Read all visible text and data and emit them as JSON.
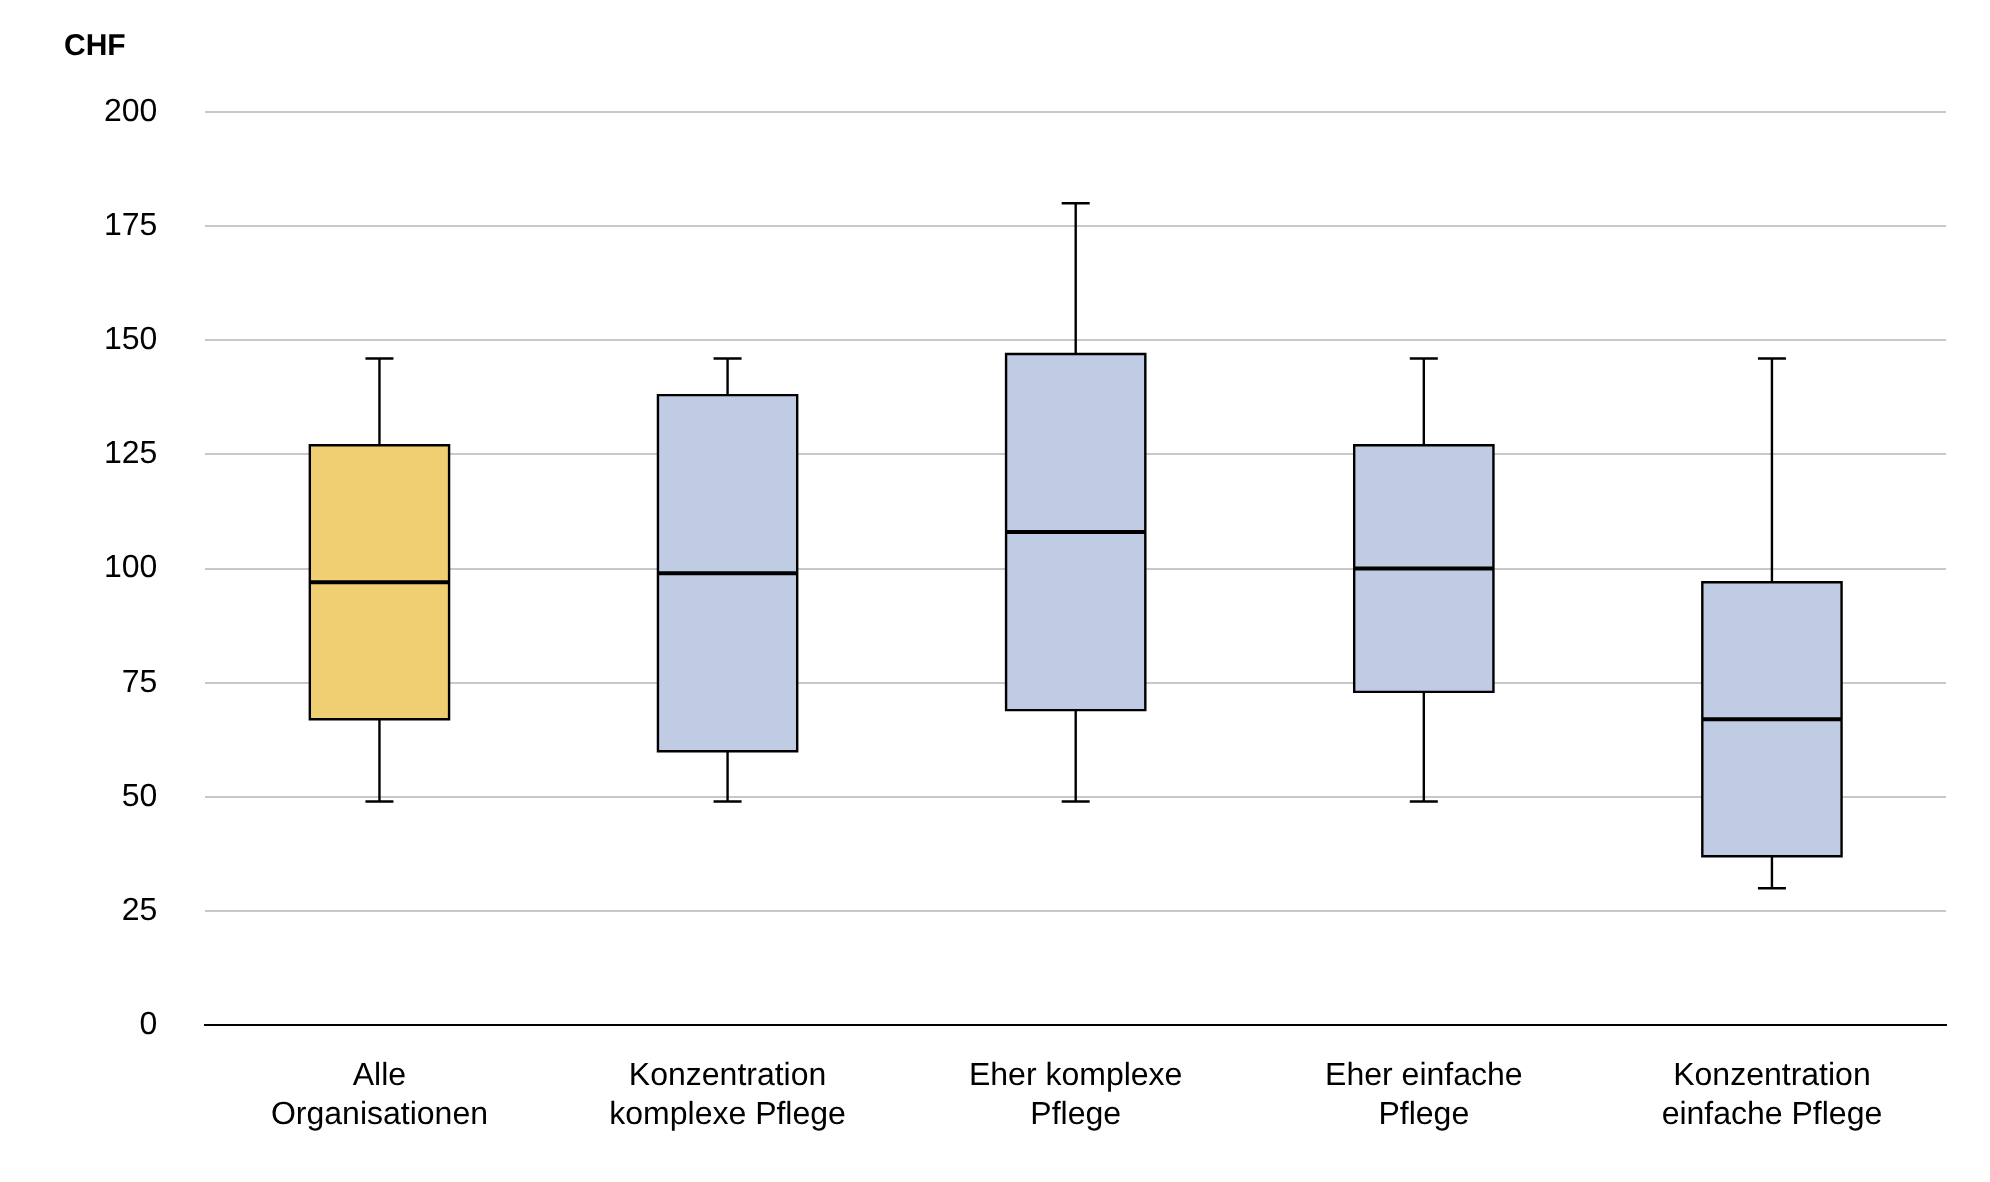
{
  "chart_data": {
    "type": "box",
    "ylabel": "CHF",
    "categories": [
      "Alle Organisationen",
      "Konzentration komplexe Pflege",
      "Eher komplexe Pflege",
      "Eher einfache Pflege",
      "Konzentration einfache Pflege"
    ],
    "colors": [
      "#f0cf73",
      "#c0cbe4",
      "#c0cbe4",
      "#c0cbe4",
      "#c0cbe4"
    ],
    "boxes": [
      {
        "low": 49,
        "q1": 67,
        "median": 97,
        "q3": 127,
        "high": 146
      },
      {
        "low": 49,
        "q1": 60,
        "median": 99,
        "q3": 138,
        "high": 146
      },
      {
        "low": 49,
        "q1": 69,
        "median": 108,
        "q3": 147,
        "high": 180
      },
      {
        "low": 49,
        "q1": 73,
        "median": 100,
        "q3": 127,
        "high": 146
      },
      {
        "low": 30,
        "q1": 37,
        "median": 67,
        "q3": 97,
        "high": 146
      }
    ],
    "ylim": [
      0,
      200
    ],
    "yticks": [
      0,
      25,
      50,
      75,
      100,
      125,
      150,
      175,
      200
    ],
    "grid": "y",
    "legend": false
  }
}
